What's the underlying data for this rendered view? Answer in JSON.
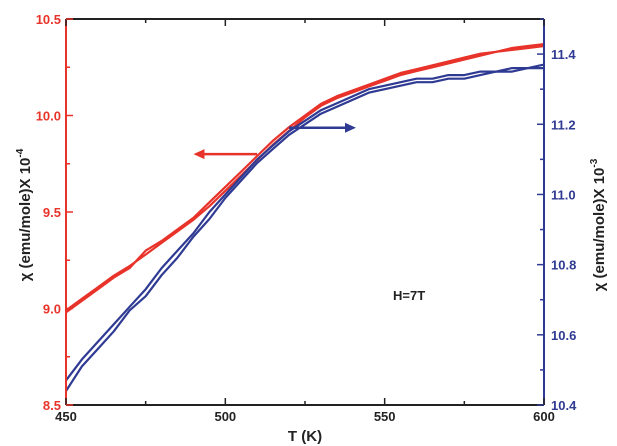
{
  "chart_data": {
    "type": "line",
    "xlabel": "T (K)",
    "ylabel_left": "χ (emu/mole)X 10",
    "ylabel_left_exp": "-4",
    "ylabel_right": "χ (emu/mole)X 10",
    "ylabel_right_exp": "-3",
    "xlim": [
      450,
      600
    ],
    "ylim_left": [
      8.5,
      10.5
    ],
    "ylim_right": [
      10.4,
      11.5
    ],
    "x_ticks": [
      "450",
      "500",
      "550",
      "600"
    ],
    "y_left_ticks": [
      "8.5",
      "9.0",
      "9.5",
      "10.0",
      "10.5"
    ],
    "y_right_ticks": [
      "10.4",
      "10.6",
      "10.8",
      "11.0",
      "11.2",
      "11.4"
    ],
    "annotation": "H=7T",
    "colors": {
      "left": "#e8332a",
      "right": "#2f3a93",
      "axis": "#222222"
    },
    "series": [
      {
        "axis": "left",
        "color": "#e8332a",
        "x": [
          450,
          455,
          460,
          465,
          470,
          475,
          480,
          485,
          490,
          495,
          500,
          505,
          510,
          515,
          520,
          525,
          530,
          535,
          540,
          545,
          550,
          555,
          560,
          565,
          570,
          575,
          580,
          585,
          590,
          595,
          600
        ],
        "values": [
          8.99,
          9.05,
          9.11,
          9.17,
          9.22,
          9.28,
          9.34,
          9.4,
          9.46,
          9.53,
          9.61,
          9.69,
          9.77,
          9.85,
          9.92,
          9.99,
          10.05,
          10.09,
          10.12,
          10.15,
          10.18,
          10.21,
          10.23,
          10.25,
          10.27,
          10.29,
          10.31,
          10.33,
          10.34,
          10.35,
          10.36
        ]
      },
      {
        "axis": "left",
        "color": "#e8332a",
        "x": [
          450,
          455,
          460,
          465,
          470,
          475,
          480,
          485,
          490,
          495,
          500,
          505,
          510,
          515,
          520,
          525,
          530,
          535,
          540,
          545,
          550,
          555,
          560,
          565,
          570,
          575,
          580,
          585,
          590,
          595,
          600
        ],
        "values": [
          8.98,
          9.04,
          9.1,
          9.16,
          9.21,
          9.3,
          9.35,
          9.41,
          9.47,
          9.55,
          9.63,
          9.71,
          9.79,
          9.87,
          9.94,
          10.0,
          10.06,
          10.1,
          10.13,
          10.16,
          10.19,
          10.22,
          10.24,
          10.26,
          10.28,
          10.3,
          10.32,
          10.33,
          10.35,
          10.36,
          10.37
        ]
      },
      {
        "axis": "right",
        "color": "#2f3a93",
        "x": [
          450,
          455,
          460,
          465,
          470,
          475,
          480,
          485,
          490,
          495,
          500,
          505,
          510,
          515,
          520,
          525,
          530,
          535,
          540,
          545,
          550,
          555,
          560,
          565,
          570,
          575,
          580,
          585,
          590,
          595,
          600
        ],
        "values": [
          10.47,
          10.53,
          10.58,
          10.63,
          10.68,
          10.73,
          10.79,
          10.84,
          10.89,
          10.95,
          11.0,
          11.05,
          11.1,
          11.14,
          11.18,
          11.21,
          11.24,
          11.26,
          11.28,
          11.3,
          11.31,
          11.32,
          11.33,
          11.33,
          11.34,
          11.34,
          11.35,
          11.35,
          11.36,
          11.36,
          11.37
        ]
      },
      {
        "axis": "right",
        "color": "#2f3a93",
        "x": [
          450,
          455,
          460,
          465,
          470,
          475,
          480,
          485,
          490,
          495,
          500,
          505,
          510,
          515,
          520,
          525,
          530,
          535,
          540,
          545,
          550,
          555,
          560,
          565,
          570,
          575,
          580,
          585,
          590,
          595,
          600
        ],
        "values": [
          10.44,
          10.51,
          10.56,
          10.61,
          10.67,
          10.71,
          10.77,
          10.82,
          10.88,
          10.93,
          10.99,
          11.04,
          11.09,
          11.13,
          11.17,
          11.2,
          11.23,
          11.25,
          11.27,
          11.29,
          11.3,
          11.31,
          11.32,
          11.32,
          11.33,
          11.33,
          11.34,
          11.35,
          11.35,
          11.36,
          11.36
        ]
      }
    ],
    "arrows": [
      {
        "axis": "left",
        "color": "#e8332a",
        "direction": "left",
        "x_from": 510,
        "x_to": 490,
        "y": 9.8
      },
      {
        "axis": "right",
        "color": "#2f3a93",
        "direction": "right",
        "x_from": 520,
        "x_to": 541,
        "y": 11.19
      }
    ]
  }
}
